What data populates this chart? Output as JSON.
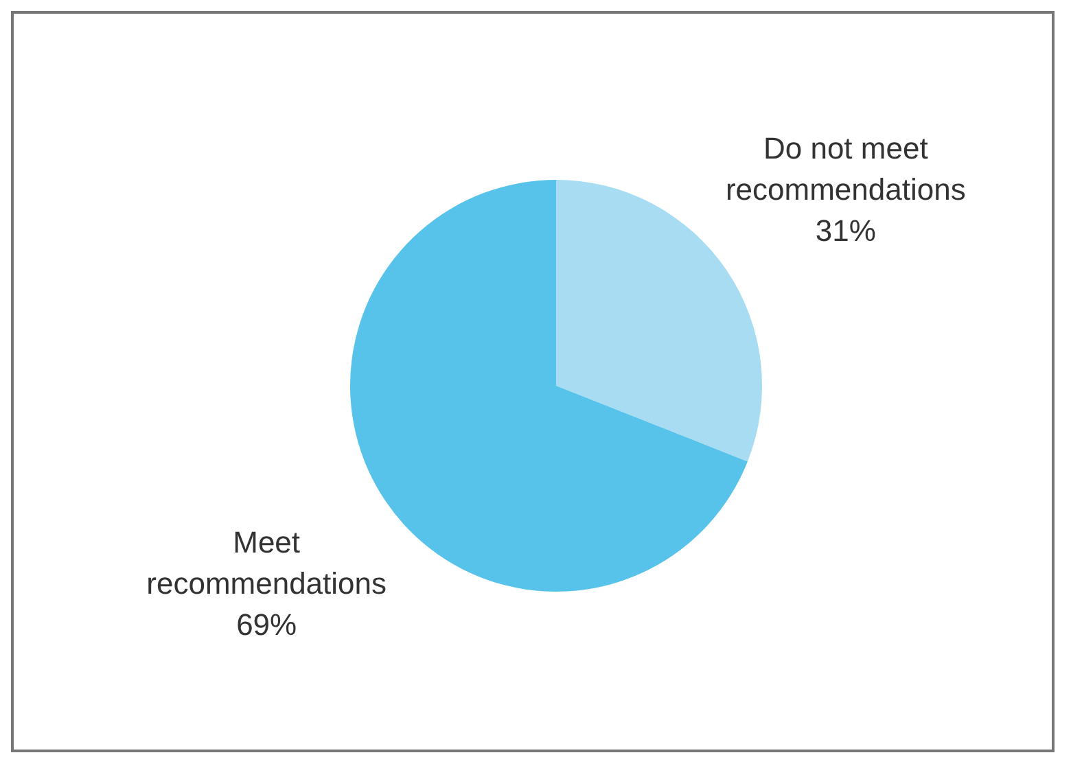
{
  "chart_data": {
    "type": "pie",
    "categories": [
      "Do not meet recommendations",
      "Meet recommendations"
    ],
    "values": [
      31,
      69
    ],
    "colors": [
      "#a8dcf2",
      "#57c2ea"
    ],
    "value_labels": [
      "31%",
      "69%"
    ],
    "legend": false
  }
}
